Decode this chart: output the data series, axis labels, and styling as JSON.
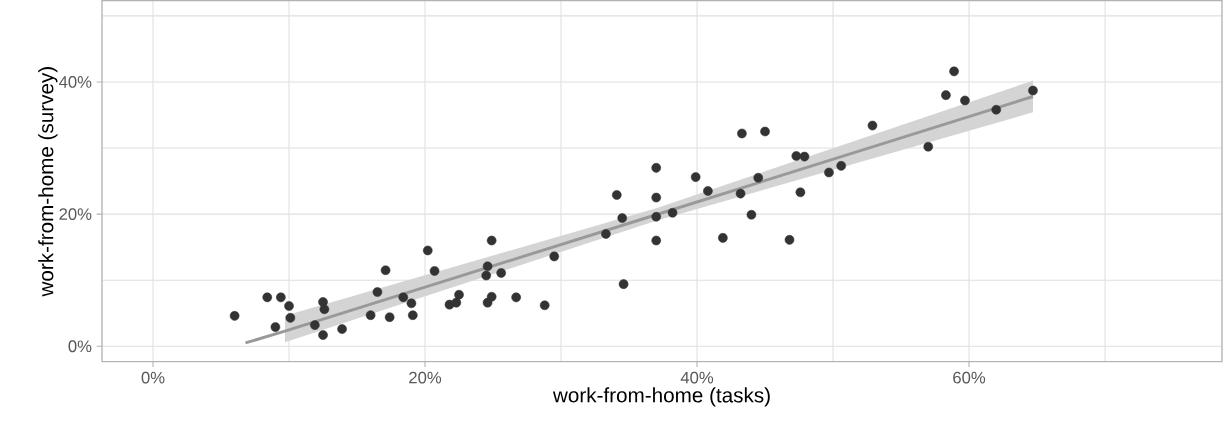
{
  "chart_data": {
    "type": "scatter",
    "xlabel": "work-from-home (tasks)",
    "ylabel": "work-from-home (survey)",
    "xlim": [
      -3.75,
      78.6
    ],
    "ylim": [
      -2.33,
      52.3
    ],
    "xticks": [
      {
        "value": 0,
        "label": "0%"
      },
      {
        "value": 10,
        "label": null
      },
      {
        "value": 20,
        "label": "20%"
      },
      {
        "value": 30,
        "label": null
      },
      {
        "value": 40,
        "label": "40%"
      },
      {
        "value": 50,
        "label": null
      },
      {
        "value": 60,
        "label": "60%"
      },
      {
        "value": 70,
        "label": null
      }
    ],
    "yticks": [
      {
        "value": 0,
        "label": "0%"
      },
      {
        "value": 10,
        "label": null
      },
      {
        "value": 20,
        "label": "20%"
      },
      {
        "value": 30,
        "label": null
      },
      {
        "value": 40,
        "label": "40%"
      },
      {
        "value": 50,
        "label": null
      }
    ],
    "grid": true,
    "series": [
      {
        "type": "line",
        "color": "#999999",
        "x": [
          6.8,
          9.7,
          37,
          64.7
        ],
        "values": [
          0.5,
          2.3,
          19.9,
          37.8
        ],
        "lower": [
          null,
          0.6,
          19.0,
          35.4
        ],
        "upper": [
          null,
          4.6,
          20.9,
          40.2
        ]
      },
      {
        "marker": "circle",
        "color": "#333333",
        "x": [
          6.0,
          8.4,
          9.4,
          10.0,
          10.1,
          9.0,
          12.5,
          12.6,
          11.9,
          12.5,
          13.9,
          16.0,
          16.5,
          17.1,
          17.4,
          18.4,
          19.0,
          19.1,
          20.2,
          20.7,
          21.8,
          22.3,
          22.5,
          24.9,
          24.6,
          24.5,
          24.9,
          24.6,
          25.6,
          26.7,
          28.8,
          29.5,
          33.3,
          34.1,
          34.5,
          34.6,
          37.0,
          37.0,
          37.0,
          37.0,
          38.2,
          39.9,
          40.8,
          41.9,
          43.2,
          43.3,
          44.0,
          44.5,
          45.0,
          46.8,
          47.3,
          47.9,
          47.6,
          49.7,
          50.6,
          52.9,
          57.0,
          58.3,
          58.9,
          59.7,
          62.0,
          64.7
        ],
        "values": [
          4.6,
          7.4,
          7.4,
          6.1,
          4.3,
          2.9,
          6.7,
          5.6,
          3.2,
          1.7,
          2.6,
          4.7,
          8.2,
          11.5,
          4.4,
          7.4,
          6.5,
          4.7,
          14.5,
          11.4,
          6.3,
          6.6,
          7.8,
          16.0,
          12.1,
          10.7,
          7.5,
          6.6,
          11.1,
          7.4,
          6.2,
          13.6,
          17.0,
          22.9,
          19.4,
          9.4,
          27.0,
          22.5,
          19.6,
          16.0,
          20.2,
          25.6,
          23.5,
          16.4,
          23.1,
          32.2,
          19.9,
          25.5,
          32.5,
          16.1,
          28.8,
          28.7,
          23.3,
          26.3,
          27.3,
          33.4,
          30.2,
          38.0,
          41.6,
          37.2,
          35.8,
          38.7
        ]
      }
    ]
  }
}
